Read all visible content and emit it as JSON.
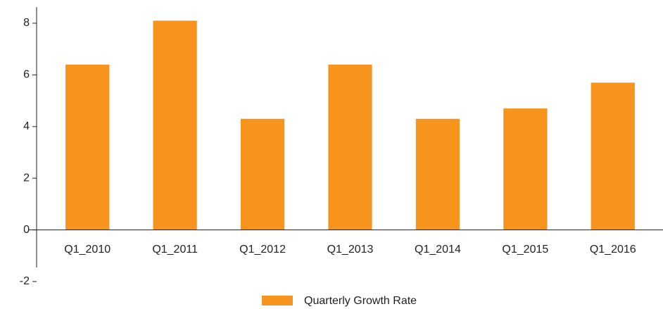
{
  "chart_data": {
    "type": "bar",
    "categories": [
      "Q1_2010",
      "Q1_2011",
      "Q1_2012",
      "Q1_2013",
      "Q1_2014",
      "Q1_2015",
      "Q1_2016"
    ],
    "series": [
      {
        "name": "Quarterly Growth Rate",
        "color": "#f7941d",
        "values": [
          6.4,
          8.1,
          4.3,
          6.4,
          4.3,
          4.7,
          5.7
        ]
      }
    ],
    "ylim": [
      -2,
      8
    ],
    "yticks": [
      -2,
      0,
      2,
      4,
      6,
      8
    ],
    "grid": false,
    "legend": "bottom"
  }
}
